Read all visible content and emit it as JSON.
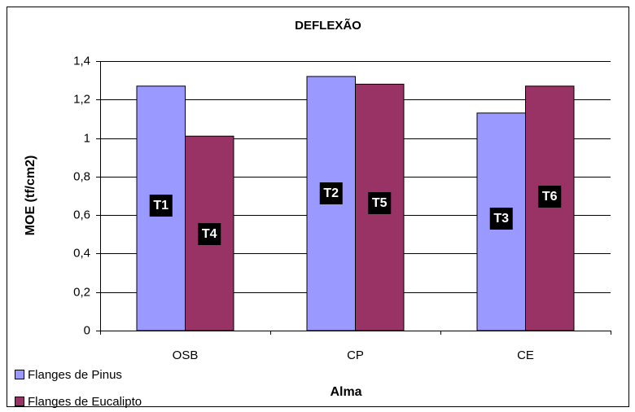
{
  "chart_data": {
    "type": "bar",
    "title": "DEFLEXÃO",
    "x_label": "Alma",
    "y_label": "MOE (tf/cm2)",
    "categories": [
      "OSB",
      "CP",
      "CE"
    ],
    "series": [
      {
        "name": "Flanges de Pinus",
        "color": "#9999ff",
        "values": [
          1.27,
          1.32,
          1.13
        ],
        "labels": [
          "T1",
          "T2",
          "T3"
        ]
      },
      {
        "name": "Flanges de Eucalipto",
        "color": "#993366",
        "values": [
          1.01,
          1.28,
          1.27
        ],
        "labels": [
          "T4",
          "T5",
          "T6"
        ]
      }
    ],
    "ylim": [
      0,
      1.4
    ],
    "yticks": [
      0,
      {
        "value": 0.2,
        "label": "0,2"
      },
      {
        "value": 0.4,
        "label": "0,4"
      },
      {
        "value": 0.6,
        "label": "0,6"
      },
      {
        "value": 0.8,
        "label": "0,8"
      },
      1,
      {
        "value": 1.2,
        "label": "1,2"
      },
      {
        "value": 1.4,
        "label": "1,4"
      }
    ],
    "grid": true
  }
}
